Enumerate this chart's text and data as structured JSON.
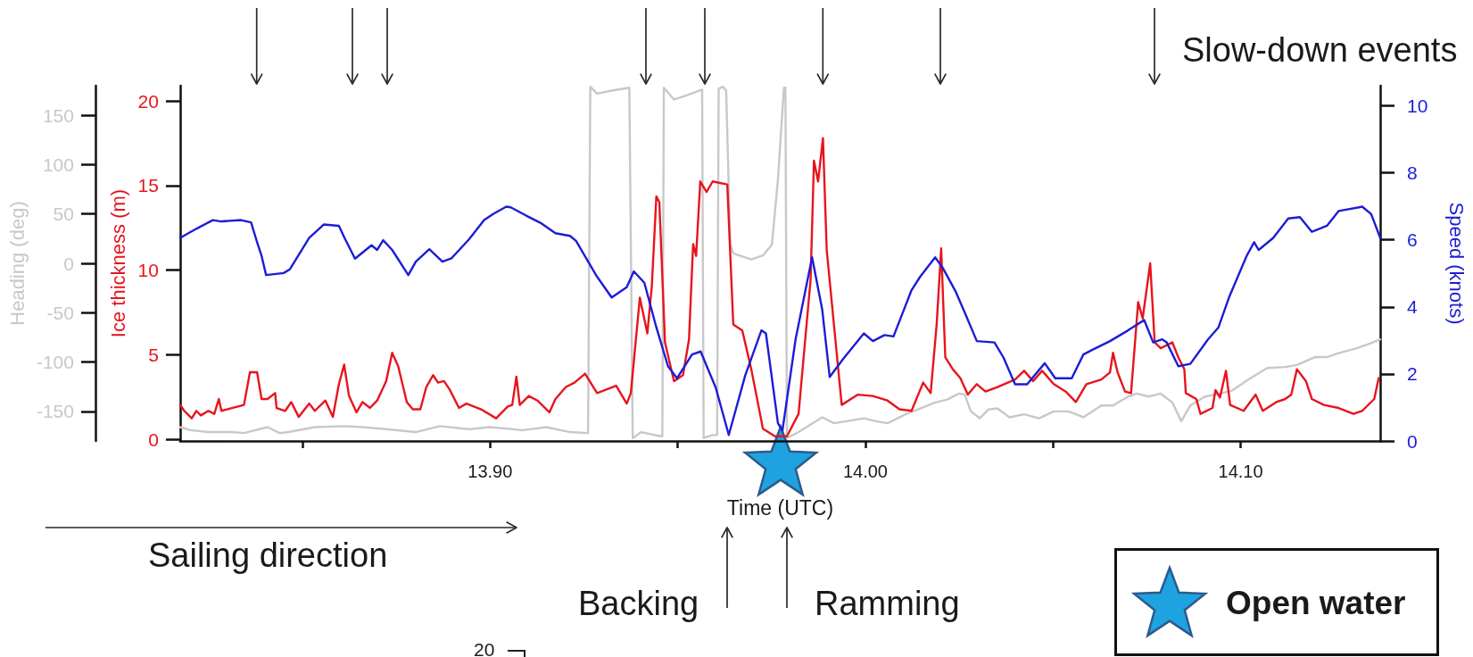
{
  "chart_data": {
    "type": "line",
    "xlabel": "Time (UTC)",
    "ylabel": "Ice thickness (m)",
    "y2label": "Speed (knots)",
    "y3label": "Heading (deg)",
    "xlim": [
      13.8174,
      14.1372
    ],
    "xticks": [
      {
        "value": 13.85,
        "label": null
      },
      {
        "value": 13.9,
        "label": "13.90"
      },
      {
        "value": 13.95,
        "label": null
      },
      {
        "value": 14,
        "label": "14.00"
      },
      {
        "value": 14.05,
        "label": null
      },
      {
        "value": 14.1,
        "label": "14.10"
      }
    ],
    "ylim": [
      -0.1,
      20.9
    ],
    "yticks": [
      0,
      5,
      10,
      15,
      20
    ],
    "y2lim": [
      0,
      10.6
    ],
    "y2ticks": [
      0,
      2,
      4,
      6,
      8,
      10
    ],
    "y3lim": [
      -180,
      180
    ],
    "y3ticks": [
      -150,
      -100,
      -50,
      0,
      50,
      100,
      150
    ],
    "series": [
      {
        "color": "#c8c8c8",
        "axis": "y3",
        "x": [
          13.8174,
          13.8201,
          13.8249,
          13.8312,
          13.8344,
          13.8407,
          13.8439,
          13.8462,
          13.8533,
          13.8609,
          13.866,
          13.8723,
          13.8802,
          13.8866,
          13.8944,
          13.9,
          13.9087,
          13.915,
          13.9213,
          13.9261,
          13.9267,
          13.9285,
          13.9324,
          13.9371,
          13.938,
          13.9403,
          13.9451,
          13.9459,
          13.9463,
          13.949,
          13.9522,
          13.9565,
          13.9569,
          13.9593,
          13.9605,
          13.9609,
          13.962,
          13.9629,
          13.964,
          13.9648,
          13.9696,
          13.9727,
          13.9751,
          13.9767,
          13.9783,
          13.9787,
          13.9791,
          13.9822,
          13.9885,
          13.9917,
          13.9996,
          14.0028,
          14.0059,
          14.0107,
          14.0146,
          14.0186,
          14.0218,
          14.0249,
          14.0265,
          14.0281,
          14.0305,
          14.0328,
          14.0352,
          14.0384,
          14.0423,
          14.0463,
          14.0502,
          14.0542,
          14.0581,
          14.0629,
          14.066,
          14.07,
          14.0723,
          14.0755,
          14.0787,
          14.0818,
          14.0842,
          14.0866,
          14.0905,
          14.0945,
          14.0977,
          14.1024,
          14.1071,
          14.1119,
          14.115,
          14.1198,
          14.123,
          14.1261,
          14.1309,
          14.134,
          14.1372
        ],
        "values": [
          -166,
          -169,
          -171,
          -171,
          -172,
          -166,
          -172,
          -171,
          -166,
          -165,
          -166,
          -168,
          -171,
          -165,
          -168,
          -166,
          -169,
          -166,
          -171,
          -172,
          179,
          172,
          175,
          178,
          -177,
          -171,
          -175,
          -175,
          178,
          166,
          170,
          176,
          -177,
          -174,
          -174,
          177,
          179,
          175,
          19,
          10,
          4,
          8,
          19,
          85,
          178,
          178,
          -177,
          -171,
          -156,
          -162,
          -157,
          -160,
          -162,
          -153,
          -147,
          -141,
          -138,
          -132,
          -133,
          -150,
          -157,
          -148,
          -147,
          -156,
          -153,
          -157,
          -150,
          -150,
          -156,
          -144,
          -144,
          -135,
          -132,
          -135,
          -132,
          -141,
          -160,
          -144,
          -135,
          -132,
          -129,
          -117,
          -106,
          -105,
          -103,
          -95,
          -95,
          -91,
          -86,
          -82,
          -77
        ]
      },
      {
        "color": "#e8141c",
        "x": [
          13.8174,
          13.8185,
          13.8205,
          13.8217,
          13.8229,
          13.8249,
          13.8265,
          13.8277,
          13.8284,
          13.8312,
          13.8344,
          13.836,
          13.8379,
          13.8391,
          13.8407,
          13.8427,
          13.8431,
          13.8454,
          13.847,
          13.849,
          13.8518,
          13.8533,
          13.8561,
          13.8581,
          13.8597,
          13.8611,
          13.8624,
          13.8644,
          13.866,
          13.868,
          13.8699,
          13.8723,
          13.8739,
          13.8755,
          13.8778,
          13.8794,
          13.8814,
          13.883,
          13.8848,
          13.8861,
          13.8877,
          13.8893,
          13.8917,
          13.8937,
          13.8976,
          13.9016,
          13.9047,
          13.9059,
          13.907,
          13.9079,
          13.9103,
          13.9126,
          13.9158,
          13.9174,
          13.9202,
          13.9225,
          13.9253,
          13.9285,
          13.9336,
          13.9364,
          13.9375,
          13.9399,
          13.9419,
          13.9431,
          13.9443,
          13.9451,
          13.9466,
          13.949,
          13.9514,
          13.953,
          13.9541,
          13.9549,
          13.956,
          13.9577,
          13.9593,
          13.9632,
          13.9648,
          13.9672,
          13.9696,
          13.9727,
          13.9759,
          13.9791,
          13.9822,
          13.9854,
          13.9863,
          13.9874,
          13.9887,
          13.9897,
          13.9937,
          13.998,
          14.002,
          14.0059,
          14.0091,
          14.0123,
          14.0154,
          14.0174,
          14.019,
          14.0202,
          14.0213,
          14.0233,
          14.0253,
          14.0273,
          14.0297,
          14.032,
          14.0352,
          14.0399,
          14.0423,
          14.0447,
          14.0471,
          14.0502,
          14.0534,
          14.0561,
          14.0589,
          14.0629,
          14.0652,
          14.066,
          14.0672,
          14.0692,
          14.0708,
          14.0727,
          14.0739,
          14.0759,
          14.0771,
          14.0787,
          14.0818,
          14.0834,
          14.085,
          14.0854,
          14.0882,
          14.0893,
          14.0925,
          14.0933,
          14.0945,
          14.0961,
          14.0972,
          14.1008,
          14.104,
          14.1059,
          14.1095,
          14.1119,
          14.1135,
          14.115,
          14.1174,
          14.119,
          14.1222,
          14.1261,
          14.1301,
          14.1324,
          14.1356,
          14.1368
        ],
        "values": [
          2.03,
          1.68,
          1.24,
          1.68,
          1.41,
          1.68,
          1.5,
          2.38,
          1.68,
          1.85,
          2.03,
          3.96,
          3.96,
          2.38,
          2.38,
          2.73,
          1.85,
          1.68,
          2.2,
          1.32,
          2.11,
          1.68,
          2.29,
          1.32,
          3.26,
          4.41,
          2.56,
          1.59,
          2.2,
          1.85,
          2.29,
          3.44,
          5.11,
          4.32,
          2.2,
          1.77,
          1.77,
          3.09,
          3.79,
          3.35,
          3.44,
          2.91,
          1.85,
          2.11,
          1.77,
          1.24,
          1.94,
          2.03,
          3.7,
          2.03,
          2.56,
          2.29,
          1.59,
          2.38,
          3.09,
          3.35,
          3.88,
          2.73,
          3.17,
          2.11,
          2.73,
          8.37,
          6.26,
          9.07,
          14.36,
          14.01,
          5.73,
          3.44,
          3.79,
          5.9,
          11.54,
          10.84,
          15.24,
          14.62,
          15.24,
          15.06,
          6.79,
          6.43,
          4.14,
          0.62,
          0.18,
          0.18,
          1.5,
          9.43,
          16.47,
          15.24,
          17.8,
          11.19,
          2.03,
          2.64,
          2.56,
          2.29,
          1.77,
          1.68,
          3.35,
          2.73,
          6.79,
          11.28,
          4.85,
          4.14,
          3.62,
          2.64,
          3.26,
          2.82,
          3.09,
          3.53,
          4.05,
          3.44,
          4.05,
          3.26,
          2.82,
          2.2,
          3.26,
          3.53,
          3.96,
          5.11,
          3.96,
          2.82,
          2.73,
          8.11,
          7.14,
          10.4,
          5.73,
          5.38,
          5.73,
          4.85,
          4.14,
          2.73,
          2.38,
          1.5,
          1.85,
          2.91,
          2.47,
          4.05,
          2.03,
          1.68,
          2.64,
          1.68,
          2.2,
          2.38,
          2.64,
          4.14,
          3.44,
          2.38,
          2.03,
          1.85,
          1.5,
          1.68,
          2.38,
          3.62
        ]
      },
      {
        "color": "#1c1cd8",
        "axis": "y2",
        "x": [
          13.8174,
          13.8217,
          13.8261,
          13.8284,
          13.8336,
          13.8363,
          13.8379,
          13.8391,
          13.8403,
          13.845,
          13.8466,
          13.8518,
          13.8557,
          13.8597,
          13.8612,
          13.864,
          13.8684,
          13.8699,
          13.8715,
          13.8739,
          13.8782,
          13.8802,
          13.8838,
          13.8873,
          13.8897,
          13.8944,
          13.8984,
          13.9008,
          13.9043,
          13.9055,
          13.9095,
          13.9134,
          13.9174,
          13.9213,
          13.9229,
          13.9285,
          13.9324,
          13.9364,
          13.9383,
          13.9411,
          13.9443,
          13.9474,
          13.9498,
          13.9538,
          13.9561,
          13.9601,
          13.9636,
          13.968,
          13.9723,
          13.9735,
          13.9767,
          13.9779,
          13.9814,
          13.9858,
          13.9885,
          13.9905,
          13.9941,
          13.9996,
          14.002,
          14.0051,
          14.0075,
          14.0123,
          14.0146,
          14.0186,
          14.0206,
          14.0241,
          14.0265,
          14.0297,
          14.0344,
          14.0368,
          14.0399,
          14.0431,
          14.0478,
          14.0506,
          14.055,
          14.0581,
          14.0605,
          14.0652,
          14.07,
          14.0743,
          14.0767,
          14.0791,
          14.0803,
          14.0834,
          14.0866,
          14.0913,
          14.0941,
          14.0969,
          14.1016,
          14.1036,
          14.1048,
          14.1087,
          14.1127,
          14.1158,
          14.119,
          14.123,
          14.1261,
          14.1324,
          14.1348,
          14.1372
        ],
        "values": [
          6.06,
          6.33,
          6.59,
          6.55,
          6.59,
          6.52,
          5.93,
          5.52,
          4.95,
          5.01,
          5.12,
          6.06,
          6.46,
          6.42,
          6.06,
          5.44,
          5.84,
          5.7,
          5.99,
          5.7,
          4.95,
          5.35,
          5.72,
          5.35,
          5.45,
          6.02,
          6.59,
          6.77,
          6.99,
          6.97,
          6.73,
          6.51,
          6.2,
          6.12,
          5.97,
          4.9,
          4.28,
          4.59,
          5.06,
          4.72,
          3.39,
          2.23,
          1.87,
          2.58,
          2.67,
          1.6,
          0.18,
          1.96,
          3.3,
          3.21,
          0.53,
          0.31,
          3.03,
          5.48,
          3.92,
          1.91,
          2.45,
          3.21,
          2.98,
          3.16,
          3.12,
          4.5,
          4.9,
          5.48,
          5.17,
          4.45,
          3.83,
          2.98,
          2.94,
          2.49,
          1.69,
          1.69,
          2.32,
          1.87,
          1.87,
          2.58,
          2.72,
          2.98,
          3.3,
          3.61,
          2.94,
          3.03,
          2.94,
          2.23,
          2.3,
          3.03,
          3.39,
          4.28,
          5.52,
          5.93,
          5.7,
          6.06,
          6.64,
          6.68,
          6.24,
          6.42,
          6.86,
          6.99,
          6.77,
          6.06
        ]
      }
    ],
    "annotations": [
      "Slow-down events",
      "Sailing direction",
      "Backing",
      "Ramming",
      "Open water",
      "20"
    ]
  }
}
